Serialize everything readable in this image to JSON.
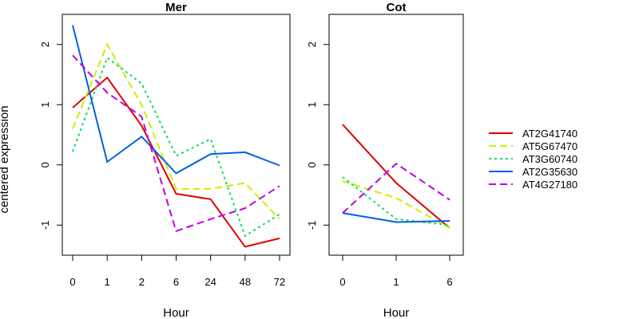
{
  "chart_data": {
    "type": "line",
    "ylabel": "centered expression",
    "ylim": [
      -1.5,
      2.5
    ],
    "yticks": [
      "-1",
      "0",
      "1",
      "2"
    ],
    "grid": false,
    "legend_position": "right",
    "legend": [
      {
        "name": "AT2G41740",
        "color": "#e00000",
        "dash": "solid"
      },
      {
        "name": "AT5G67470",
        "color": "#c8f000",
        "dash": "dashed"
      },
      {
        "name": "AT3G60740",
        "color": "#00e060",
        "dash": "dotted"
      },
      {
        "name": "AT2G35630",
        "color": "#0060e0",
        "dash": "solid"
      },
      {
        "name": "AT4G27180",
        "color": "#c000e0",
        "dash": "dashed"
      }
    ],
    "panels": [
      {
        "title": "Mer",
        "xlabel": "Hour",
        "categories": [
          "0",
          "1",
          "2",
          "6",
          "24",
          "48",
          "72"
        ],
        "series": [
          {
            "name": "AT2G41740",
            "values": [
              0.95,
              1.45,
              0.65,
              -0.48,
              -0.57,
              -1.36,
              -1.22
            ]
          },
          {
            "name": "AT5G67470",
            "values": [
              0.6,
              2.0,
              1.0,
              -0.4,
              -0.4,
              -0.3,
              -0.9
            ]
          },
          {
            "name": "AT3G60740",
            "values": [
              0.22,
              1.78,
              1.35,
              0.15,
              0.43,
              -1.18,
              -0.82
            ]
          },
          {
            "name": "AT2G35630",
            "values": [
              2.32,
              0.05,
              0.47,
              -0.14,
              0.18,
              0.21,
              -0.01
            ]
          },
          {
            "name": "AT4G27180",
            "values": [
              1.82,
              1.2,
              0.8,
              -1.1,
              -0.9,
              -0.72,
              -0.35
            ]
          }
        ]
      },
      {
        "title": "Cot",
        "xlabel": "Hour",
        "categories": [
          "0",
          "1",
          "6"
        ],
        "series": [
          {
            "name": "AT2G41740",
            "values": [
              0.67,
              -0.3,
              -1.05
            ]
          },
          {
            "name": "AT5G67470",
            "values": [
              -0.27,
              -0.55,
              -1.05
            ]
          },
          {
            "name": "AT3G60740",
            "values": [
              -0.2,
              -0.9,
              -1.0
            ]
          },
          {
            "name": "AT2G35630",
            "values": [
              -0.8,
              -0.95,
              -0.93
            ]
          },
          {
            "name": "AT4G27180",
            "values": [
              -0.8,
              0.02,
              -0.58
            ]
          }
        ]
      }
    ]
  }
}
